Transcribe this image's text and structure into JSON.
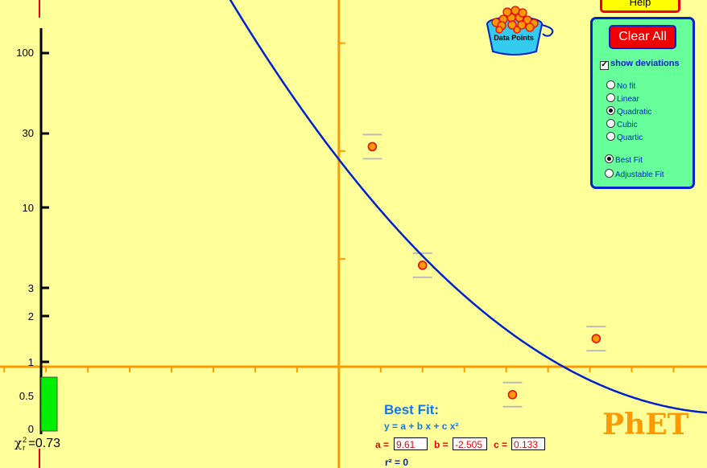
{
  "help_button": {
    "label": "Help"
  },
  "data_points_bucket": {
    "label": "Data Points"
  },
  "control_panel": {
    "clear_all": "Clear All",
    "show_deviations": {
      "label": "show deviations",
      "checked": true
    },
    "fit_types": [
      {
        "label": "No fit",
        "selected": false
      },
      {
        "label": "Linear",
        "selected": false
      },
      {
        "label": "Quadratic",
        "selected": true
      },
      {
        "label": "Cubic",
        "selected": false
      },
      {
        "label": "Quartic",
        "selected": false
      }
    ],
    "fit_modes": [
      {
        "label": "Best Fit",
        "selected": true
      },
      {
        "label": "Adjustable Fit",
        "selected": false
      }
    ]
  },
  "chi_scale": {
    "ticks": [
      "100",
      "30",
      "10",
      "3",
      "2",
      "1",
      "0.5",
      "0"
    ],
    "symbol": "χ",
    "subscript": "r",
    "superscript": "2",
    "equals": "=",
    "value": "0.73",
    "bar_value": 0.73,
    "bar_color": "#00ee00"
  },
  "best_fit": {
    "title": "Best Fit:",
    "equation": "y = a + b x + c x²",
    "a_label": "a =",
    "a_value": "9.61",
    "b_label": "b =",
    "b_value": "-2.505",
    "c_label": "c =",
    "c_value": "0.133",
    "r2_label": "r² =",
    "r2_value": "0"
  },
  "logo": "PhET",
  "colors": {
    "background": "#ffff99",
    "axis": "#ff9900",
    "curve": "#0022cc",
    "point_fill": "#ff9900",
    "point_stroke": "#ee0000",
    "panel": "#66ff99",
    "clear_button": "#ee0000"
  },
  "chart_data": {
    "type": "scatter",
    "fit": "quadratic",
    "coefficients": {
      "a": 9.61,
      "b": -2.505,
      "c": 0.133
    },
    "points": [
      {
        "x": 0.8,
        "y": 10.2
      },
      {
        "x": 2.0,
        "y": 4.7
      },
      {
        "x": 4.15,
        "y": -1.3
      },
      {
        "x": 6.15,
        "y": 1.3
      }
    ],
    "xlim": [
      -8.1,
      8.8
    ],
    "ylim": [
      -4.7,
      17.0
    ]
  }
}
